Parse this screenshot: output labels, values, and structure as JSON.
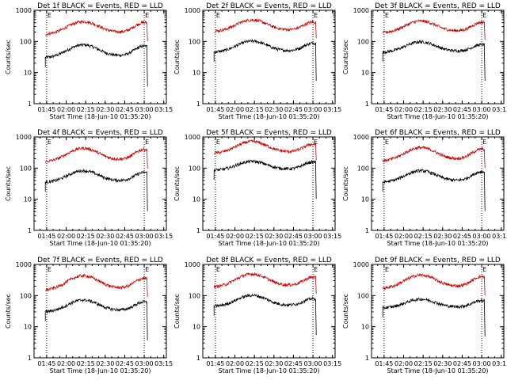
{
  "chart_data": [
    {
      "type": "line",
      "title": "Det 1f BLACK = Events, RED = LLD",
      "xlabel": "Start Time (18-Jun-10 01:35:20)",
      "ylabel": "Counts/sec",
      "x_tick_labels": [
        "01:45",
        "02:00",
        "02:15",
        "02:30",
        "02:45",
        "03:00",
        "03:15"
      ],
      "y_tick_labels": [
        "1",
        "10",
        "100",
        "1000"
      ],
      "y_scale": "log",
      "ylim": [
        1,
        1000
      ],
      "xlim": [
        "01:35:20",
        "03:17"
      ],
      "marker_text": "E",
      "vertical_lines": [
        "01:45",
        "03:00"
      ],
      "series": [
        {
          "color": "#000000",
          "start": 30,
          "peak": 75,
          "end": 75
        },
        {
          "color": "#d00000",
          "start": 170,
          "peak": 420,
          "end": 430
        }
      ]
    },
    {
      "type": "line",
      "title": "Det 2f BLACK = Events, RED = LLD",
      "xlabel": "Start Time (18-Jun-10 01:35:20)",
      "ylabel": "Counts/sec",
      "x_tick_labels": [
        "01:45",
        "02:00",
        "02:15",
        "02:30",
        "02:45",
        "03:00",
        "03:15"
      ],
      "y_tick_labels": [
        "1",
        "10",
        "100",
        "1000"
      ],
      "y_scale": "log",
      "ylim": [
        1,
        1000
      ],
      "xlim": [
        "01:35:20",
        "03:17"
      ],
      "marker_text": "E",
      "vertical_lines": [
        "01:45",
        "03:00"
      ],
      "series": [
        {
          "color": "#000000",
          "start": 45,
          "peak": 100,
          "end": 90
        },
        {
          "color": "#d00000",
          "start": 210,
          "peak": 480,
          "end": 430
        }
      ]
    },
    {
      "type": "line",
      "title": "Det 3f BLACK = Events, RED = LLD",
      "xlabel": "Start Time (18-Jun-10 01:35:20)",
      "ylabel": "Counts/sec",
      "x_tick_labels": [
        "01:45",
        "02:00",
        "02:15",
        "02:30",
        "02:45",
        "03:00",
        "03:15"
      ],
      "y_tick_labels": [
        "1",
        "10",
        "100",
        "1000"
      ],
      "y_scale": "log",
      "ylim": [
        1,
        1000
      ],
      "xlim": [
        "01:35:20",
        "03:17"
      ],
      "marker_text": "E",
      "vertical_lines": [
        "01:45",
        "03:00"
      ],
      "series": [
        {
          "color": "#000000",
          "start": 45,
          "peak": 95,
          "end": 80
        },
        {
          "color": "#d00000",
          "start": 190,
          "peak": 440,
          "end": 430
        }
      ]
    },
    {
      "type": "line",
      "title": "Det 4f BLACK = Events, RED = LLD",
      "xlabel": "Start Time (18-Jun-10 01:35:20)",
      "ylabel": "Counts/sec",
      "x_tick_labels": [
        "01:45",
        "02:00",
        "02:15",
        "02:30",
        "02:45",
        "03:00",
        "03:15"
      ],
      "y_tick_labels": [
        "1",
        "10",
        "100",
        "1000"
      ],
      "y_scale": "log",
      "ylim": [
        1,
        1000
      ],
      "xlim": [
        "01:35:20",
        "03:17"
      ],
      "marker_text": "E",
      "vertical_lines": [
        "01:45",
        "03:00"
      ],
      "series": [
        {
          "color": "#000000",
          "start": 35,
          "peak": 80,
          "end": 75
        },
        {
          "color": "#d00000",
          "start": 160,
          "peak": 420,
          "end": 420
        }
      ]
    },
    {
      "type": "line",
      "title": "Det 5f BLACK = Events, RED = LLD",
      "xlabel": "Start Time (18-Jun-10 01:35:20)",
      "ylabel": "Counts/sec",
      "x_tick_labels": [
        "01:45",
        "02:00",
        "02:15",
        "02:30",
        "02:45",
        "03:00",
        "03:15"
      ],
      "y_tick_labels": [
        "1",
        "10",
        "100",
        "1000"
      ],
      "y_scale": "log",
      "ylim": [
        1,
        1000
      ],
      "xlim": [
        "01:35:20",
        "03:17"
      ],
      "marker_text": "E",
      "vertical_lines": [
        "01:45",
        "03:00"
      ],
      "series": [
        {
          "color": "#000000",
          "start": 85,
          "peak": 160,
          "end": 160
        },
        {
          "color": "#d00000",
          "start": 300,
          "peak": 700,
          "end": 600
        }
      ]
    },
    {
      "type": "line",
      "title": "Det 6f BLACK = Events, RED = LLD",
      "xlabel": "Start Time (18-Jun-10 01:35:20)",
      "ylabel": "Counts/sec",
      "x_tick_labels": [
        "01:45",
        "02:00",
        "02:15",
        "02:30",
        "02:45",
        "03:00",
        "03:15"
      ],
      "y_tick_labels": [
        "1",
        "10",
        "100",
        "1000"
      ],
      "y_scale": "log",
      "ylim": [
        1,
        1000
      ],
      "xlim": [
        "01:35:20",
        "03:17"
      ],
      "marker_text": "E",
      "vertical_lines": [
        "01:45",
        "03:00"
      ],
      "series": [
        {
          "color": "#000000",
          "start": 35,
          "peak": 80,
          "end": 80
        },
        {
          "color": "#d00000",
          "start": 170,
          "peak": 440,
          "end": 430
        }
      ]
    },
    {
      "type": "line",
      "title": "Det 7f BLACK = Events, RED = LLD",
      "xlabel": "Start Time (18-Jun-10 01:35:20)",
      "ylabel": "Counts/sec",
      "x_tick_labels": [
        "01:45",
        "02:00",
        "02:15",
        "02:30",
        "02:45",
        "03:00",
        "03:15"
      ],
      "y_tick_labels": [
        "1",
        "10",
        "100",
        "1000"
      ],
      "y_scale": "log",
      "ylim": [
        1,
        1000
      ],
      "xlim": [
        "01:35:20",
        "03:17"
      ],
      "marker_text": "E",
      "vertical_lines": [
        "01:45",
        "03:00"
      ],
      "series": [
        {
          "color": "#000000",
          "start": 30,
          "peak": 70,
          "end": 65
        },
        {
          "color": "#d00000",
          "start": 150,
          "peak": 420,
          "end": 380
        }
      ]
    },
    {
      "type": "line",
      "title": "Det 8f BLACK = Events, RED = LLD",
      "xlabel": "Start Time (18-Jun-10 01:35:20)",
      "ylabel": "Counts/sec",
      "x_tick_labels": [
        "01:45",
        "02:00",
        "02:15",
        "02:30",
        "02:45",
        "03:00",
        "03:15"
      ],
      "y_tick_labels": [
        "1",
        "10",
        "100",
        "1000"
      ],
      "y_scale": "log",
      "ylim": [
        1,
        1000
      ],
      "xlim": [
        "01:35:20",
        "03:17"
      ],
      "marker_text": "E",
      "vertical_lines": [
        "01:45",
        "03:00"
      ],
      "series": [
        {
          "color": "#000000",
          "start": 45,
          "peak": 100,
          "end": 80
        },
        {
          "color": "#d00000",
          "start": 190,
          "peak": 480,
          "end": 400
        }
      ]
    },
    {
      "type": "line",
      "title": "Det 9f BLACK = Events, RED = LLD",
      "xlabel": "Start Time (18-Jun-10 01:35:20)",
      "ylabel": "Counts/sec",
      "x_tick_labels": [
        "01:45",
        "02:00",
        "02:15",
        "02:30",
        "02:45",
        "03:00",
        "03:15"
      ],
      "y_tick_labels": [
        "1",
        "10",
        "100",
        "1000"
      ],
      "y_scale": "log",
      "ylim": [
        1,
        1000
      ],
      "xlim": [
        "01:35:20",
        "03:17"
      ],
      "marker_text": "E",
      "vertical_lines": [
        "01:45",
        "03:00"
      ],
      "series": [
        {
          "color": "#000000",
          "start": 40,
          "peak": 75,
          "end": 70
        },
        {
          "color": "#d00000",
          "start": 170,
          "peak": 440,
          "end": 430
        }
      ]
    }
  ]
}
